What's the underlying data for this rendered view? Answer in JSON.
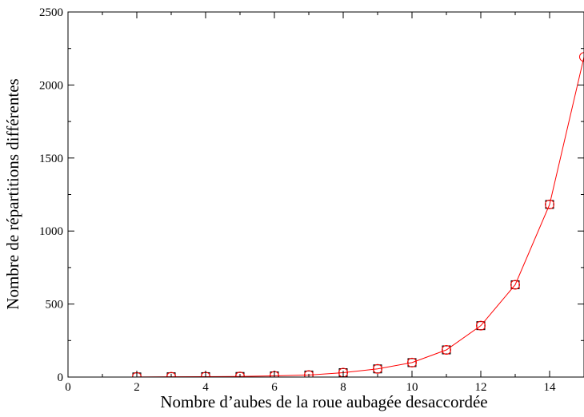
{
  "chart_data": {
    "type": "line",
    "title": "",
    "xlabel": "Nombre d’aubes de la roue aubagée desaccordée",
    "ylabel": "Nombre de répartitions différentes",
    "xlim": [
      0,
      15
    ],
    "ylim": [
      0,
      2500
    ],
    "xticks": [
      0,
      2,
      4,
      6,
      8,
      10,
      12,
      14
    ],
    "yticks": [
      0,
      500,
      1000,
      1500,
      2000,
      2500
    ],
    "xtick_labels": [
      "0",
      "2",
      "4",
      "6",
      "8",
      "10",
      "12",
      "14"
    ],
    "ytick_labels": [
      "0",
      "500",
      "1000",
      "1500",
      "2000",
      "2500"
    ],
    "grid": false,
    "legend": "none",
    "series": [
      {
        "marker": "square",
        "color": "#000000",
        "x": [
          2,
          3,
          4,
          5,
          6,
          7,
          8,
          9,
          10,
          11,
          12,
          13,
          14
        ],
        "y": [
          1,
          2,
          3,
          4,
          8,
          14,
          30,
          56,
          99,
          186,
          352,
          632,
          1182
        ]
      },
      {
        "marker": "circle",
        "color": "#ff0000",
        "line": true,
        "x": [
          2,
          3,
          4,
          5,
          6,
          7,
          8,
          9,
          10,
          11,
          12,
          13,
          14,
          15
        ],
        "y": [
          1,
          2,
          3,
          4,
          8,
          14,
          30,
          56,
          99,
          186,
          352,
          632,
          1182,
          2192
        ]
      }
    ]
  }
}
